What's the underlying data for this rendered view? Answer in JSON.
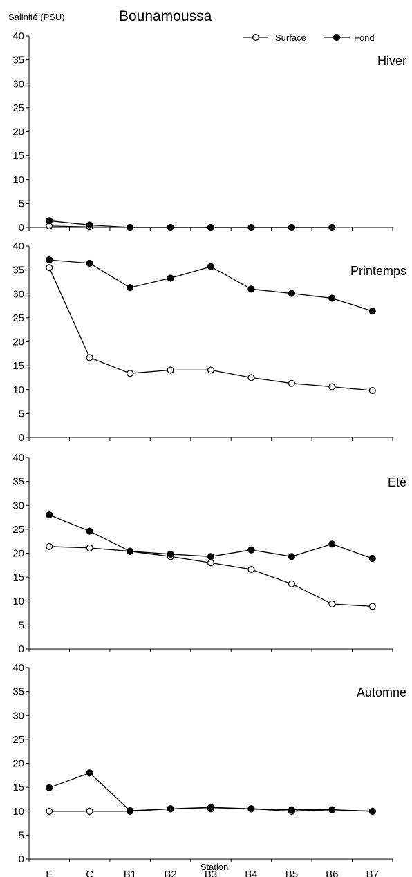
{
  "chart_data": {
    "type": "line",
    "title": "Bounamoussa",
    "ylabel": "Salinité (PSU)",
    "xlabel": "Station",
    "categories": [
      "E",
      "C",
      "B1",
      "B2",
      "B3",
      "B4",
      "B5",
      "B6",
      "B7"
    ],
    "ylim": [
      0,
      40
    ],
    "yticks": [
      0,
      5,
      10,
      15,
      20,
      25,
      30,
      35,
      40
    ],
    "legend": {
      "position": "top-right",
      "entries": [
        {
          "name": "Surface",
          "marker": "open-circle"
        },
        {
          "name": "Fond",
          "marker": "filled-circle"
        }
      ]
    },
    "grid": false,
    "panels": [
      {
        "title": "Hiver",
        "series": [
          {
            "name": "Surface",
            "values": [
              0.3,
              0.1,
              0.0,
              0.0,
              0.0,
              0.0,
              0.0,
              0.0,
              null
            ]
          },
          {
            "name": "Fond",
            "values": [
              1.4,
              0.5,
              0.0,
              0.0,
              0.0,
              0.0,
              0.0,
              0.0,
              null
            ]
          }
        ]
      },
      {
        "title": "Printemps",
        "series": [
          {
            "name": "Surface",
            "values": [
              35.5,
              16.7,
              13.4,
              14.1,
              14.1,
              12.5,
              11.3,
              10.6,
              9.8
            ]
          },
          {
            "name": "Fond",
            "values": [
              37.1,
              36.4,
              31.3,
              33.3,
              35.7,
              31.0,
              30.1,
              29.1,
              26.4
            ]
          }
        ]
      },
      {
        "title": "Eté",
        "series": [
          {
            "name": "Surface",
            "values": [
              21.4,
              21.1,
              20.4,
              19.3,
              18.0,
              16.6,
              13.6,
              9.4,
              8.9
            ]
          },
          {
            "name": "Fond",
            "values": [
              28.0,
              24.6,
              20.4,
              19.8,
              19.3,
              20.7,
              19.3,
              21.9,
              18.9
            ]
          }
        ]
      },
      {
        "title": "Automne",
        "series": [
          {
            "name": "Surface",
            "values": [
              10.0,
              10.0,
              10.0,
              10.5,
              10.5,
              10.5,
              10.0,
              10.3,
              10.0
            ]
          },
          {
            "name": "Fond",
            "values": [
              14.9,
              18.0,
              10.1,
              10.5,
              10.8,
              10.5,
              10.3,
              10.3,
              10.0
            ]
          }
        ]
      }
    ]
  }
}
